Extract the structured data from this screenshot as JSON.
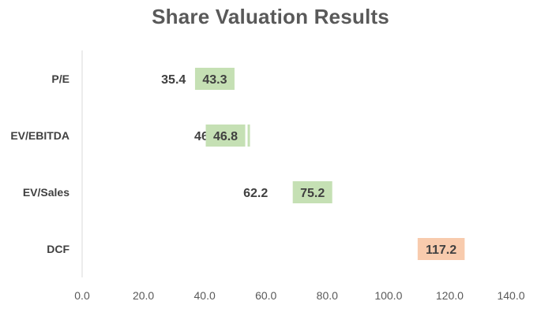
{
  "chart_data": {
    "type": "bar",
    "orientation": "horizontal",
    "subtype": "floating-range",
    "title": "Share Valuation Results",
    "categories": [
      "P/E",
      "EV/EBITDA",
      "EV/Sales",
      "DCF"
    ],
    "series": [
      {
        "values": [
          35.4,
          46.2,
          62.2,
          null
        ]
      },
      {
        "values": [
          43.3,
          46.8,
          75.2,
          117.2
        ]
      }
    ],
    "bar_colors": [
      "#c5e0b4",
      "#c5e0b4",
      "#c5e0b4",
      "#f8cbad"
    ],
    "x_ticks": [
      "0.0",
      "20.0",
      "40.0",
      "60.0",
      "80.0",
      "100.0",
      "120.0",
      "140.0"
    ],
    "xlim": [
      0,
      140
    ],
    "grid": false,
    "legend": "none",
    "colors": {
      "title": "#595959",
      "label": "#404040",
      "axis": "#d9d9d9",
      "tick": "#595959"
    }
  }
}
